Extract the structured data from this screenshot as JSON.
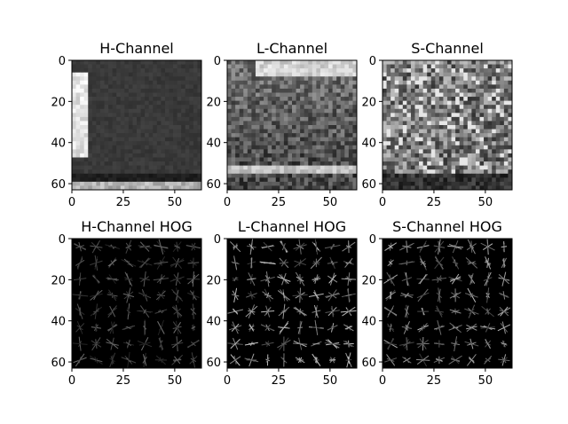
{
  "chart_data": [
    {
      "type": "heatmap",
      "title": "H-Channel",
      "xlim": [
        0,
        63
      ],
      "ylim": [
        63,
        0
      ],
      "x_ticks": [
        0,
        25,
        50
      ],
      "y_ticks": [
        0,
        20,
        40,
        60
      ],
      "colormap": "gray"
    },
    {
      "type": "heatmap",
      "title": "L-Channel",
      "xlim": [
        0,
        63
      ],
      "ylim": [
        63,
        0
      ],
      "x_ticks": [
        0,
        25,
        50
      ],
      "y_ticks": [
        0,
        20,
        40,
        60
      ],
      "colormap": "gray"
    },
    {
      "type": "heatmap",
      "title": "S-Channel",
      "xlim": [
        0,
        63
      ],
      "ylim": [
        63,
        0
      ],
      "x_ticks": [
        0,
        25,
        50
      ],
      "y_ticks": [
        0,
        20,
        40,
        60
      ],
      "colormap": "gray"
    },
    {
      "type": "heatmap",
      "title": "H-Channel HOG",
      "xlim": [
        0,
        63
      ],
      "ylim": [
        63,
        0
      ],
      "x_ticks": [
        0,
        25,
        50
      ],
      "y_ticks": [
        0,
        20,
        40,
        60
      ],
      "colormap": "gray"
    },
    {
      "type": "heatmap",
      "title": "L-Channel HOG",
      "xlim": [
        0,
        63
      ],
      "ylim": [
        63,
        0
      ],
      "x_ticks": [
        0,
        25,
        50
      ],
      "y_ticks": [
        0,
        20,
        40,
        60
      ],
      "colormap": "gray"
    },
    {
      "type": "heatmap",
      "title": "S-Channel HOG",
      "xlim": [
        0,
        63
      ],
      "ylim": [
        63,
        0
      ],
      "x_ticks": [
        0,
        25,
        50
      ],
      "y_ticks": [
        0,
        20,
        40,
        60
      ],
      "colormap": "gray"
    }
  ]
}
